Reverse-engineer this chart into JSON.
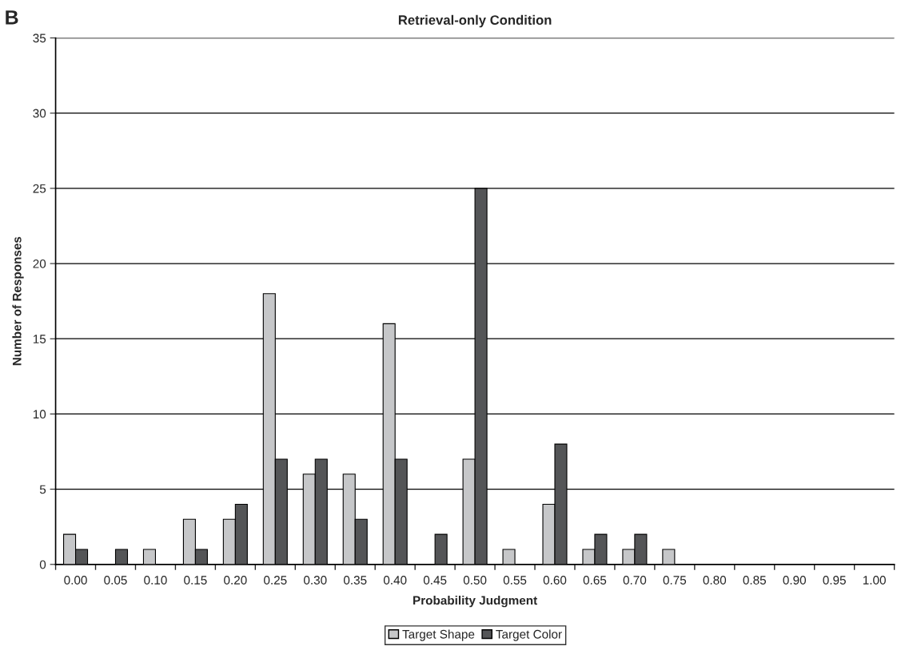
{
  "chart_data": {
    "type": "bar",
    "title": "Retrieval-only Condition",
    "xlabel": "Probability Judgment",
    "ylabel": "Number of Responses",
    "annotations": [
      "B"
    ],
    "categories": [
      "0.00",
      "0.05",
      "0.10",
      "0.15",
      "0.20",
      "0.25",
      "0.30",
      "0.35",
      "0.40",
      "0.45",
      "0.50",
      "0.55",
      "0.60",
      "0.65",
      "0.70",
      "0.75",
      "0.80",
      "0.85",
      "0.90",
      "0.95",
      "1.00"
    ],
    "series": [
      {
        "name": "Target Shape",
        "color": "#c6c7c9",
        "values": [
          2,
          0,
          1,
          3,
          3,
          18,
          6,
          6,
          16,
          0,
          7,
          1,
          4,
          1,
          1,
          1,
          0,
          0,
          0,
          0,
          0
        ]
      },
      {
        "name": "Target Color",
        "color": "#545557",
        "values": [
          1,
          1,
          0,
          1,
          4,
          7,
          7,
          3,
          7,
          2,
          25,
          0,
          8,
          2,
          2,
          0,
          0,
          0,
          0,
          0,
          0
        ]
      }
    ],
    "ylim": [
      0,
      35
    ],
    "yticks": [
      0,
      5,
      10,
      15,
      20,
      25,
      30,
      35
    ],
    "grid": "y",
    "legend": "bottom"
  }
}
